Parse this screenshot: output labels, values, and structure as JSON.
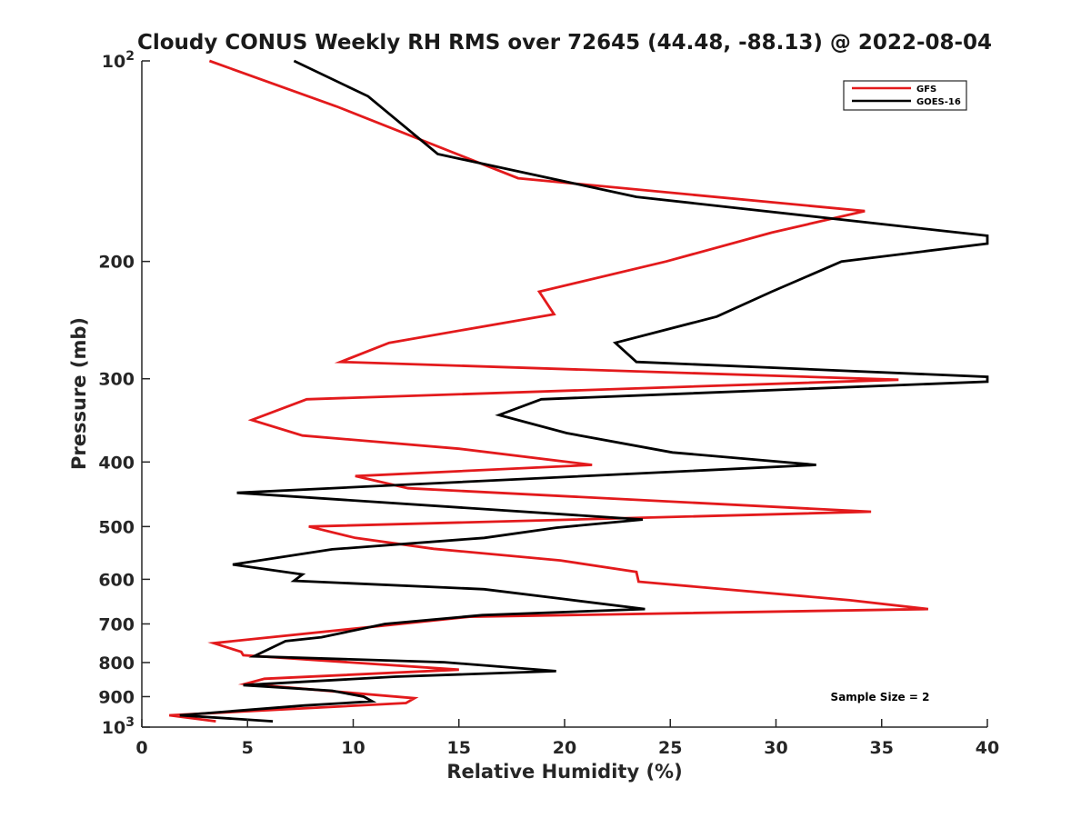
{
  "chart_data": {
    "type": "line",
    "title": "Cloudy CONUS Weekly RH RMS over 72645 (44.48, -88.13) @ 2022-08-04",
    "xlabel": "Relative Humidity (%)",
    "ylabel": "Pressure (mb)",
    "xlim": [
      0,
      40
    ],
    "ylim": [
      100,
      1000
    ],
    "y_scale": "log",
    "y_reversed": true,
    "x_ticks": [
      "0",
      "5",
      "10",
      "15",
      "20",
      "25",
      "30",
      "35",
      "40"
    ],
    "y_ticks": [
      {
        "value": 100,
        "base": "10",
        "exp": "2"
      },
      {
        "value": 200,
        "label": "200"
      },
      {
        "value": 300,
        "label": "300"
      },
      {
        "value": 400,
        "label": "400"
      },
      {
        "value": 500,
        "label": "500"
      },
      {
        "value": 600,
        "label": "600"
      },
      {
        "value": 700,
        "label": "700"
      },
      {
        "value": 800,
        "label": "800"
      },
      {
        "value": 900,
        "label": "900"
      },
      {
        "value": 1000,
        "base": "10",
        "exp": "3"
      }
    ],
    "legend_position": "top-right",
    "annotation": "Sample Size = 2",
    "series": [
      {
        "name": "GFS",
        "color": "#e31a1c",
        "points": [
          [
            3.2,
            100
          ],
          [
            9.2,
            117
          ],
          [
            17.8,
            150
          ],
          [
            34.2,
            168
          ],
          [
            29.8,
            181
          ],
          [
            24.8,
            200
          ],
          [
            18.8,
            222
          ],
          [
            19.5,
            240
          ],
          [
            11.7,
            265
          ],
          [
            9.4,
            283
          ],
          [
            35.8,
            301
          ],
          [
            7.8,
            322
          ],
          [
            5.2,
            346
          ],
          [
            7.6,
            365
          ],
          [
            15.0,
            382
          ],
          [
            21.3,
            404
          ],
          [
            10.1,
            420
          ],
          [
            12.6,
            438
          ],
          [
            34.5,
            475
          ],
          [
            7.9,
            500
          ],
          [
            10.1,
            520
          ],
          [
            13.8,
            540
          ],
          [
            19.8,
            562
          ],
          [
            23.4,
            585
          ],
          [
            23.5,
            605
          ],
          [
            33.5,
            645
          ],
          [
            37.2,
            665
          ],
          [
            15.5,
            683
          ],
          [
            3.4,
            748
          ],
          [
            4.7,
            771
          ],
          [
            4.8,
            780
          ],
          [
            15.0,
            820
          ],
          [
            5.8,
            846
          ],
          [
            4.9,
            861
          ],
          [
            12.9,
            905
          ],
          [
            12.5,
            920
          ],
          [
            1.3,
            960
          ],
          [
            3.5,
            980
          ]
        ]
      },
      {
        "name": "GOES-16",
        "color": "#000000",
        "points": [
          [
            7.2,
            100
          ],
          [
            10.7,
            113
          ],
          [
            14.0,
            138
          ],
          [
            23.4,
            160
          ],
          [
            40.0,
            183
          ],
          [
            40.0,
            188
          ],
          [
            33.1,
            200
          ],
          [
            29.8,
            222
          ],
          [
            27.2,
            242
          ],
          [
            22.4,
            265
          ],
          [
            23.4,
            283
          ],
          [
            40.0,
            298
          ],
          [
            40.0,
            303
          ],
          [
            18.9,
            322
          ],
          [
            16.9,
            340
          ],
          [
            20.1,
            362
          ],
          [
            25.1,
            387
          ],
          [
            31.9,
            404
          ],
          [
            4.5,
            445
          ],
          [
            23.7,
            488
          ],
          [
            19.6,
            502
          ],
          [
            16.2,
            520
          ],
          [
            9.0,
            541
          ],
          [
            4.3,
            570
          ],
          [
            7.6,
            590
          ],
          [
            7.2,
            603
          ],
          [
            16.2,
            621
          ],
          [
            19.9,
            642
          ],
          [
            23.8,
            665
          ],
          [
            16.1,
            679
          ],
          [
            11.5,
            700
          ],
          [
            8.5,
            733
          ],
          [
            6.8,
            743
          ],
          [
            5.3,
            783
          ],
          [
            14.3,
            799
          ],
          [
            19.6,
            824
          ],
          [
            12.0,
            840
          ],
          [
            4.8,
            865
          ],
          [
            9.0,
            882
          ],
          [
            10.5,
            900
          ],
          [
            10.9,
            915
          ],
          [
            7.7,
            928
          ],
          [
            1.8,
            960
          ],
          [
            6.2,
            980
          ]
        ]
      }
    ]
  }
}
